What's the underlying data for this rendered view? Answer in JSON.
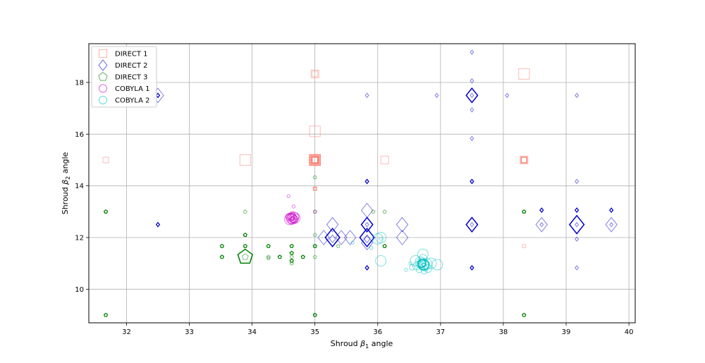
{
  "chart_data": {
    "type": "scatter",
    "xlabel_prefix": "Shroud ",
    "xlabel_symbol": "β",
    "xlabel_sub": "1",
    "xlabel_suffix": " angle",
    "ylabel_prefix": "Shroud ",
    "ylabel_symbol": "β",
    "ylabel_sub": "2",
    "ylabel_suffix": " angle",
    "xlim": [
      31.4,
      40.1
    ],
    "ylim": [
      8.7,
      19.5
    ],
    "xticks": [
      "32",
      "33",
      "34",
      "35",
      "36",
      "37",
      "38",
      "39",
      "40"
    ],
    "yticks": [
      "10",
      "12",
      "14",
      "16",
      "18"
    ],
    "grid": true,
    "legend_position": "top-left",
    "series": [
      {
        "name": "DIRECT 1",
        "marker": "square",
        "color": "#fa8072",
        "points": [
          [
            31.67,
            15.0,
            "s"
          ],
          [
            33.89,
            15.0,
            "l"
          ],
          [
            35.0,
            18.33,
            "m"
          ],
          [
            35.0,
            16.11,
            "l"
          ],
          [
            35.0,
            15.0,
            "l"
          ],
          [
            35.0,
            15.0,
            "s"
          ],
          [
            35.0,
            13.89,
            "xs"
          ],
          [
            36.11,
            15.0,
            "m"
          ],
          [
            38.33,
            18.33,
            "l"
          ],
          [
            38.33,
            15.0,
            "m"
          ],
          [
            38.33,
            15.0,
            "s"
          ],
          [
            38.33,
            11.67,
            "xs"
          ],
          [
            35.0,
            18.33,
            "s"
          ]
        ],
        "dark_points": [
          [
            35.0,
            15.0,
            "l"
          ],
          [
            35.0,
            15.0,
            "m"
          ],
          [
            35.0,
            15.0,
            "s"
          ],
          [
            38.33,
            15.0,
            "s"
          ],
          [
            35.0,
            13.89,
            "xs"
          ]
        ]
      },
      {
        "name": "DIRECT 2",
        "marker": "diamond",
        "color": "#0000cd",
        "points": [
          [
            32.5,
            17.5,
            "l"
          ],
          [
            32.5,
            17.5,
            "xs"
          ],
          [
            32.5,
            12.5,
            "xs"
          ],
          [
            35.28,
            12.5,
            "l"
          ],
          [
            35.28,
            12.0,
            "xl"
          ],
          [
            35.28,
            11.95,
            "s"
          ],
          [
            35.14,
            12.0,
            "l"
          ],
          [
            35.42,
            12.0,
            "l"
          ],
          [
            35.56,
            12.0,
            "l"
          ],
          [
            35.83,
            13.05,
            "l"
          ],
          [
            35.83,
            12.5,
            "l"
          ],
          [
            35.83,
            12.5,
            "xs"
          ],
          [
            35.83,
            12.0,
            "xl"
          ],
          [
            35.83,
            11.95,
            "s"
          ],
          [
            35.83,
            11.8,
            "l"
          ],
          [
            35.83,
            17.5,
            "xs"
          ],
          [
            35.83,
            14.17,
            "xs"
          ],
          [
            35.83,
            10.83,
            "xs"
          ],
          [
            36.39,
            12.5,
            "l"
          ],
          [
            36.39,
            12.0,
            "l"
          ],
          [
            36.94,
            17.5,
            "xs"
          ],
          [
            37.5,
            19.17,
            "xs"
          ],
          [
            37.5,
            18.06,
            "xs"
          ],
          [
            37.5,
            17.5,
            "l"
          ],
          [
            37.5,
            17.5,
            "xs"
          ],
          [
            37.5,
            16.94,
            "xs"
          ],
          [
            37.5,
            15.83,
            "xs"
          ],
          [
            37.5,
            14.17,
            "xs"
          ],
          [
            37.5,
            12.5,
            "l"
          ],
          [
            37.5,
            12.5,
            "xs"
          ],
          [
            37.5,
            10.83,
            "xs"
          ],
          [
            38.06,
            17.5,
            "xs"
          ],
          [
            38.61,
            13.06,
            "xs"
          ],
          [
            38.61,
            12.5,
            "l"
          ],
          [
            38.61,
            12.5,
            "xs"
          ],
          [
            39.17,
            17.5,
            "xs"
          ],
          [
            39.17,
            14.17,
            "xs"
          ],
          [
            39.17,
            13.06,
            "xs"
          ],
          [
            39.17,
            12.5,
            "xl"
          ],
          [
            39.17,
            12.5,
            "xs"
          ],
          [
            39.17,
            11.94,
            "xs"
          ],
          [
            39.17,
            10.83,
            "xs"
          ],
          [
            39.72,
            13.06,
            "xs"
          ],
          [
            39.72,
            12.5,
            "l"
          ],
          [
            39.72,
            12.5,
            "xs"
          ]
        ],
        "dark_points": [
          [
            32.5,
            17.5,
            "xs"
          ],
          [
            32.5,
            12.5,
            "xs"
          ],
          [
            35.28,
            12.0,
            "xl"
          ],
          [
            35.83,
            12.5,
            "l"
          ],
          [
            35.83,
            12.0,
            "xl"
          ],
          [
            37.5,
            17.5,
            "l"
          ],
          [
            37.5,
            12.5,
            "l"
          ],
          [
            39.17,
            12.5,
            "xl"
          ],
          [
            35.83,
            14.17,
            "xs"
          ],
          [
            35.83,
            10.83,
            "xs"
          ],
          [
            37.5,
            14.17,
            "xs"
          ],
          [
            37.5,
            10.83,
            "xs"
          ],
          [
            39.17,
            13.06,
            "xs"
          ],
          [
            38.61,
            13.06,
            "xs"
          ],
          [
            39.72,
            13.06,
            "xs"
          ]
        ]
      },
      {
        "name": "DIRECT 3",
        "marker": "pentagon",
        "color": "#008000",
        "points": [
          [
            31.67,
            13.0,
            "xs"
          ],
          [
            31.67,
            9.0,
            "xs"
          ],
          [
            33.89,
            11.25,
            "xl"
          ],
          [
            33.89,
            11.25,
            "s"
          ],
          [
            33.52,
            11.67,
            "xs"
          ],
          [
            33.52,
            11.25,
            "xs"
          ],
          [
            33.89,
            13.0,
            "xs"
          ],
          [
            33.89,
            12.1,
            "xs"
          ],
          [
            33.89,
            11.67,
            "xs"
          ],
          [
            34.26,
            11.67,
            "xs"
          ],
          [
            34.26,
            11.25,
            "xs"
          ],
          [
            34.44,
            11.25,
            "xs"
          ],
          [
            34.63,
            11.67,
            "xs"
          ],
          [
            34.63,
            11.4,
            "xs"
          ],
          [
            34.63,
            11.25,
            "xs"
          ],
          [
            34.63,
            11.1,
            "xs"
          ],
          [
            34.63,
            11.0,
            "xs"
          ],
          [
            34.81,
            11.25,
            "xs"
          ],
          [
            35.0,
            14.33,
            "xs"
          ],
          [
            35.0,
            13.0,
            "xs"
          ],
          [
            35.0,
            12.1,
            "xs"
          ],
          [
            35.0,
            11.67,
            "xs"
          ],
          [
            35.0,
            11.25,
            "xs"
          ],
          [
            35.0,
            9.0,
            "xs"
          ],
          [
            35.93,
            13.0,
            "xs"
          ],
          [
            36.11,
            13.0,
            "xs"
          ],
          [
            36.11,
            11.67,
            "xs"
          ],
          [
            35.37,
            11.67,
            "xs"
          ],
          [
            38.33,
            13.0,
            "xs"
          ],
          [
            38.33,
            9.0,
            "xs"
          ],
          [
            34.26,
            11.2,
            "xs"
          ]
        ],
        "dark_points": [
          [
            31.67,
            13.0,
            "xs"
          ],
          [
            31.67,
            9.0,
            "xs"
          ],
          [
            33.89,
            11.25,
            "xl"
          ],
          [
            33.52,
            11.67,
            "xs"
          ],
          [
            33.52,
            11.25,
            "xs"
          ],
          [
            33.89,
            12.1,
            "xs"
          ],
          [
            33.89,
            11.67,
            "xs"
          ],
          [
            34.26,
            11.67,
            "xs"
          ],
          [
            34.44,
            11.25,
            "xs"
          ],
          [
            34.63,
            11.67,
            "xs"
          ],
          [
            34.63,
            11.4,
            "xs"
          ],
          [
            34.63,
            11.1,
            "xs"
          ],
          [
            34.81,
            11.25,
            "xs"
          ],
          [
            35.0,
            11.67,
            "xs"
          ],
          [
            35.0,
            9.0,
            "xs"
          ],
          [
            38.33,
            13.0,
            "xs"
          ],
          [
            38.33,
            9.0,
            "xs"
          ],
          [
            36.11,
            11.67,
            "xs"
          ]
        ]
      },
      {
        "name": "COBYLA 1",
        "marker": "circle",
        "color": "#cc00cc",
        "points": [
          [
            34.62,
            12.75,
            "l"
          ],
          [
            34.64,
            12.72,
            "l"
          ],
          [
            34.66,
            12.78,
            "l"
          ],
          [
            34.6,
            12.7,
            "l"
          ],
          [
            34.68,
            12.76,
            "l"
          ],
          [
            34.63,
            12.8,
            "m"
          ],
          [
            34.67,
            12.7,
            "m"
          ],
          [
            34.65,
            12.74,
            "m"
          ],
          [
            34.61,
            12.78,
            "m"
          ],
          [
            34.66,
            12.68,
            "s"
          ],
          [
            34.62,
            12.64,
            "s"
          ],
          [
            34.58,
            12.82,
            "s"
          ],
          [
            34.7,
            12.8,
            "s"
          ],
          [
            34.64,
            12.9,
            "s"
          ],
          [
            34.58,
            13.6,
            "xs"
          ],
          [
            34.64,
            12.74,
            "xs"
          ],
          [
            35.0,
            13.0,
            "xs"
          ],
          [
            34.66,
            13.2,
            "xs"
          ]
        ],
        "dark_points": [
          [
            34.64,
            12.74,
            "xs"
          ]
        ]
      },
      {
        "name": "COBYLA 2",
        "marker": "circle",
        "color": "#00bfbf",
        "points": [
          [
            36.73,
            10.95,
            "l"
          ],
          [
            36.7,
            11.0,
            "l"
          ],
          [
            36.75,
            10.92,
            "l"
          ],
          [
            36.68,
            11.05,
            "l"
          ],
          [
            36.78,
            10.98,
            "l"
          ],
          [
            36.72,
            11.35,
            "l"
          ],
          [
            36.6,
            11.1,
            "l"
          ],
          [
            36.85,
            11.0,
            "l"
          ],
          [
            36.95,
            10.95,
            "l"
          ],
          [
            36.72,
            11.2,
            "m"
          ],
          [
            36.05,
            12.0,
            "l"
          ],
          [
            36.0,
            11.95,
            "l"
          ],
          [
            36.05,
            11.1,
            "l"
          ],
          [
            36.62,
            10.9,
            "m"
          ],
          [
            36.8,
            10.8,
            "m"
          ],
          [
            36.66,
            10.75,
            "s"
          ],
          [
            36.74,
            10.7,
            "s"
          ],
          [
            36.55,
            10.85,
            "s"
          ],
          [
            36.45,
            10.75,
            "xs"
          ],
          [
            36.52,
            11.0,
            "xs"
          ],
          [
            35.9,
            11.6,
            "xs"
          ],
          [
            35.6,
            11.8,
            "xs"
          ],
          [
            36.05,
            11.95,
            "xs"
          ],
          [
            36.73,
            10.95,
            "xs"
          ]
        ],
        "dark_points": [
          [
            36.73,
            10.95,
            "l"
          ],
          [
            36.7,
            11.0,
            "m"
          ],
          [
            36.73,
            10.95,
            "xs"
          ]
        ]
      }
    ]
  }
}
